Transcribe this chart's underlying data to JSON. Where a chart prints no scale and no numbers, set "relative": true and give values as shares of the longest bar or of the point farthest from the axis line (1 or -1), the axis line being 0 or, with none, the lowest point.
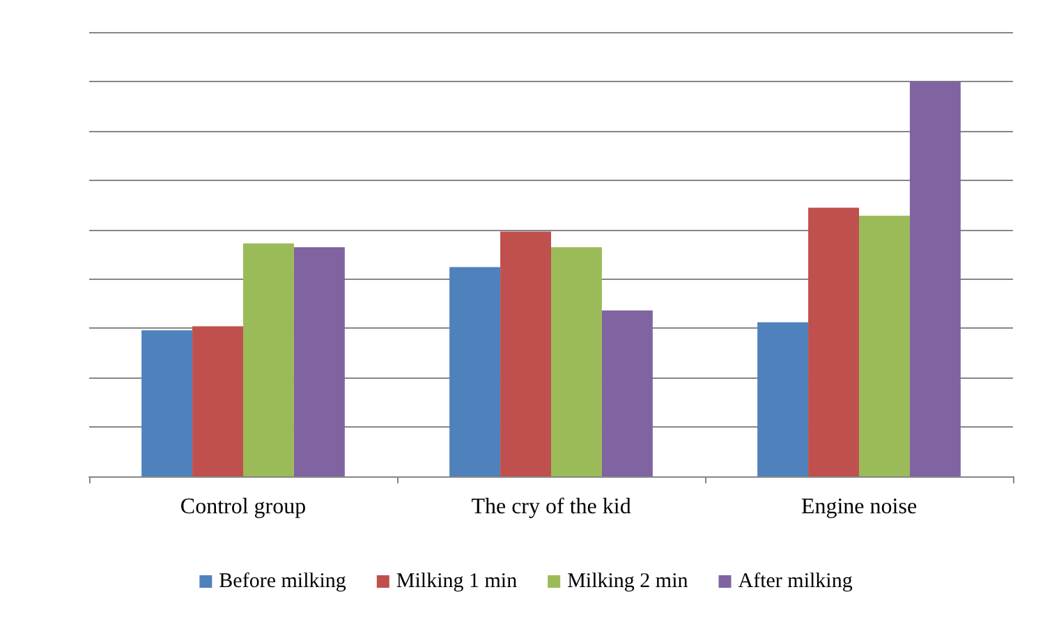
{
  "chart_data": {
    "type": "bar",
    "relative": true,
    "categories": [
      "Control group",
      "The cry of the kid",
      "Engine noise"
    ],
    "series": [
      {
        "name": "Before milking",
        "color": "#4f81bd",
        "values": [
          0.37,
          0.53,
          0.39
        ]
      },
      {
        "name": "Milking 1 min",
        "color": "#c0504d",
        "values": [
          0.38,
          0.62,
          0.68
        ]
      },
      {
        "name": "Milking 2 min",
        "color": "#9bbb59",
        "values": [
          0.59,
          0.58,
          0.66
        ]
      },
      {
        "name": "After milking",
        "color": "#8064a2",
        "values": [
          0.58,
          0.42,
          1
        ]
      }
    ],
    "grid": "y",
    "legend": "bottom"
  }
}
